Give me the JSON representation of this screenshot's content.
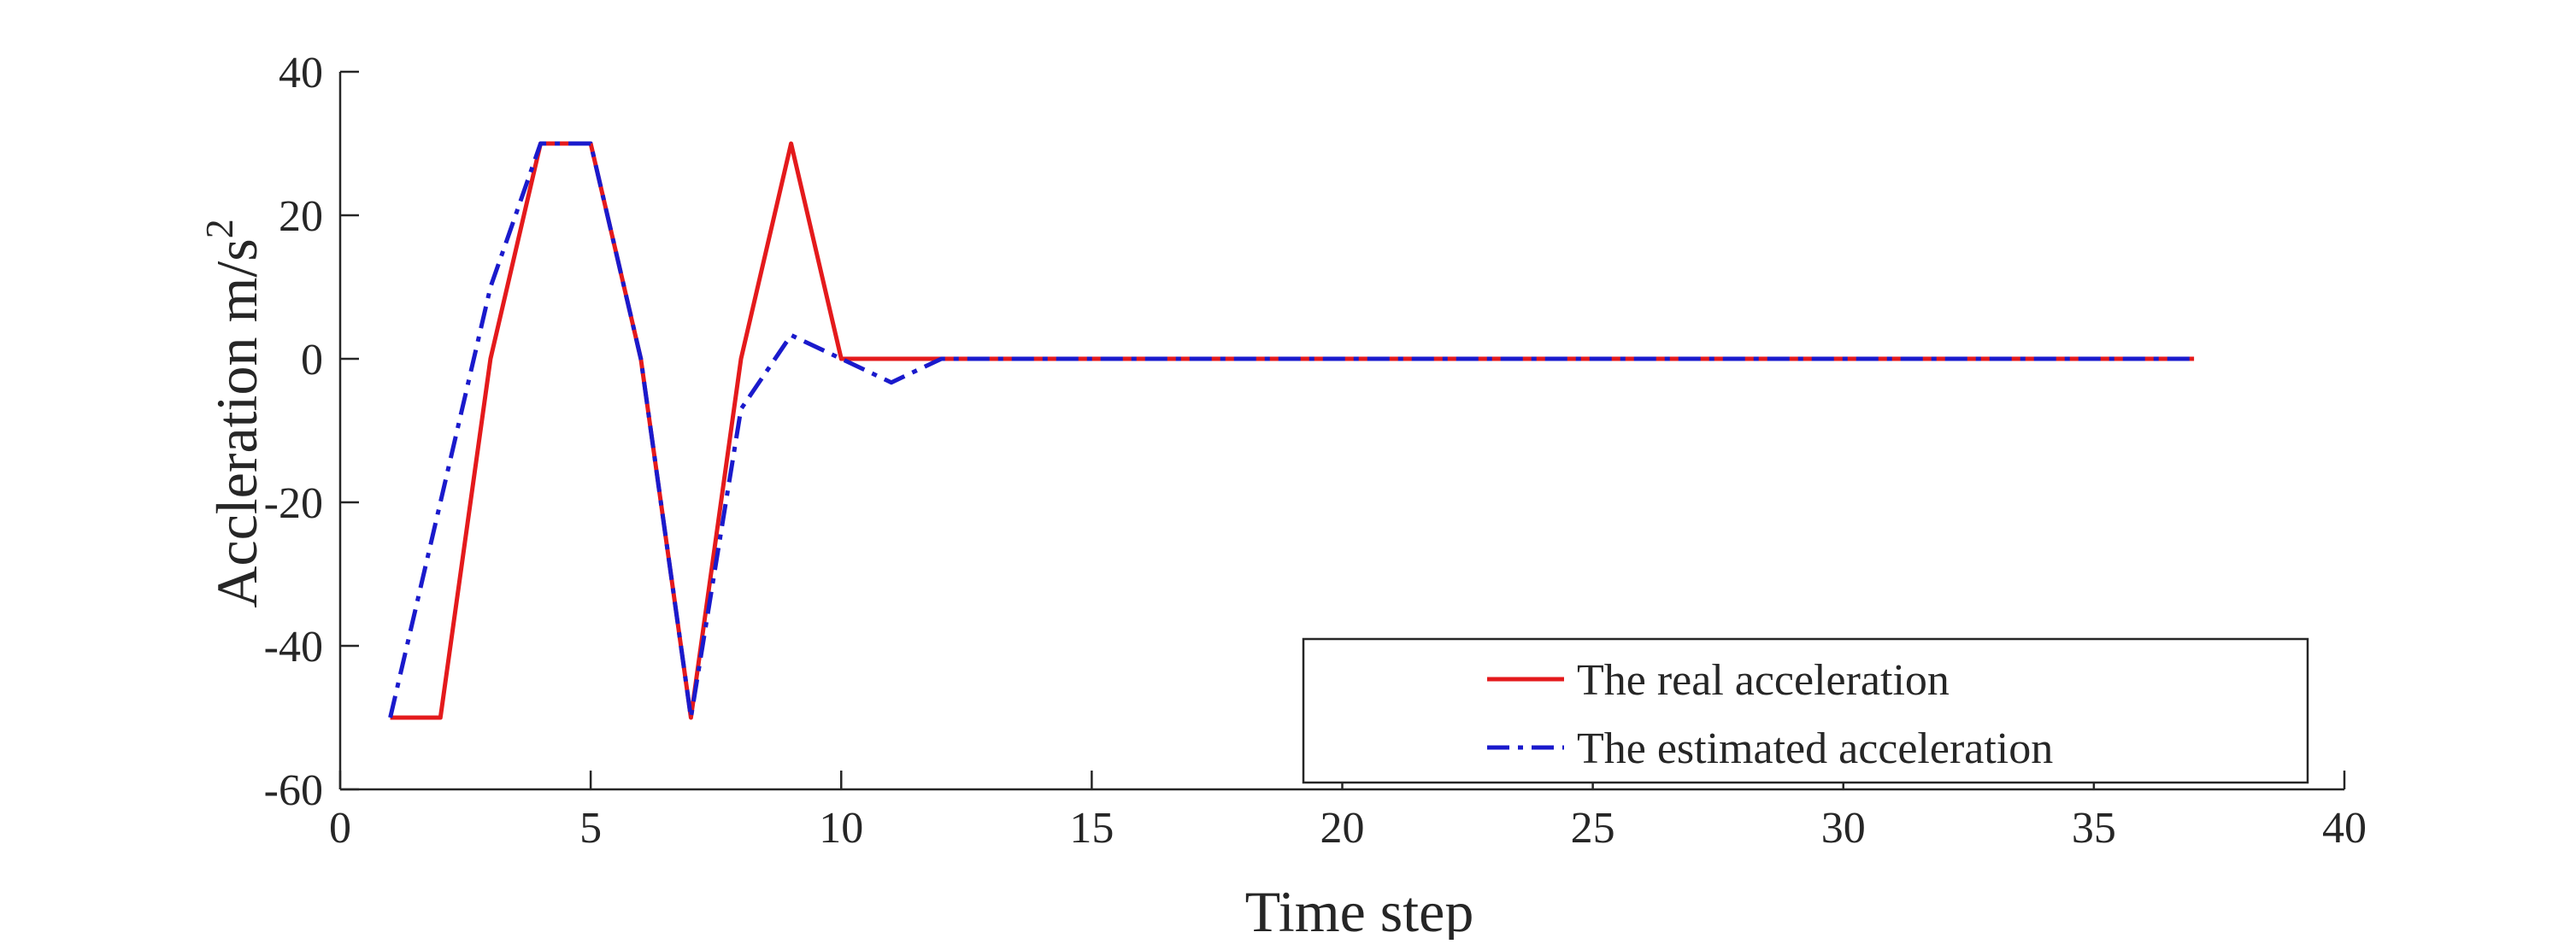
{
  "chart_data": {
    "type": "line",
    "title": "",
    "xlabel": "Time step",
    "ylabel": "Accleration m/s",
    "ylabel_superscript": "2",
    "xlim": [
      0,
      40
    ],
    "ylim": [
      -60,
      40
    ],
    "xticks": [
      0,
      5,
      10,
      15,
      20,
      25,
      30,
      35,
      40
    ],
    "yticks": [
      40,
      20,
      0,
      -20,
      -40,
      -60
    ],
    "grid": false,
    "legend_position": "bottom-right",
    "series": [
      {
        "name": "The real acceleration",
        "color": "#e41a1c",
        "style": "solid",
        "x": [
          1,
          2,
          3,
          4,
          5,
          6,
          7,
          8,
          9,
          10,
          11,
          12,
          13,
          14,
          15,
          16,
          17,
          18,
          19,
          20,
          21,
          22,
          23,
          24,
          25,
          26,
          27,
          28,
          29,
          30,
          31,
          32,
          33,
          34,
          35,
          36,
          37
        ],
        "y": [
          -50,
          -50,
          0,
          30,
          30,
          0,
          -50,
          0,
          30,
          0,
          0,
          0,
          0,
          0,
          0,
          0,
          0,
          0,
          0,
          0,
          0,
          0,
          0,
          0,
          0,
          0,
          0,
          0,
          0,
          0,
          0,
          0,
          0,
          0,
          0,
          0,
          0
        ]
      },
      {
        "name": "The estimated acceleration",
        "color": "#1a1acc",
        "style": "dash-dot",
        "x": [
          1,
          2,
          3,
          4,
          5,
          6,
          7,
          8,
          9,
          10,
          11,
          12,
          13,
          14,
          15,
          16,
          17,
          18,
          19,
          20,
          21,
          22,
          23,
          24,
          25,
          26,
          27,
          28,
          29,
          30,
          31,
          32,
          33,
          34,
          35,
          36,
          37
        ],
        "y": [
          -50,
          -20,
          10,
          30,
          30,
          0,
          -50,
          -7,
          3.3,
          0,
          -3.3,
          0,
          0,
          0,
          0,
          0,
          0,
          0,
          0,
          0,
          0,
          0,
          0,
          0,
          0,
          0,
          0,
          0,
          0,
          0,
          0,
          0,
          0,
          0,
          0,
          0,
          0
        ]
      }
    ]
  }
}
